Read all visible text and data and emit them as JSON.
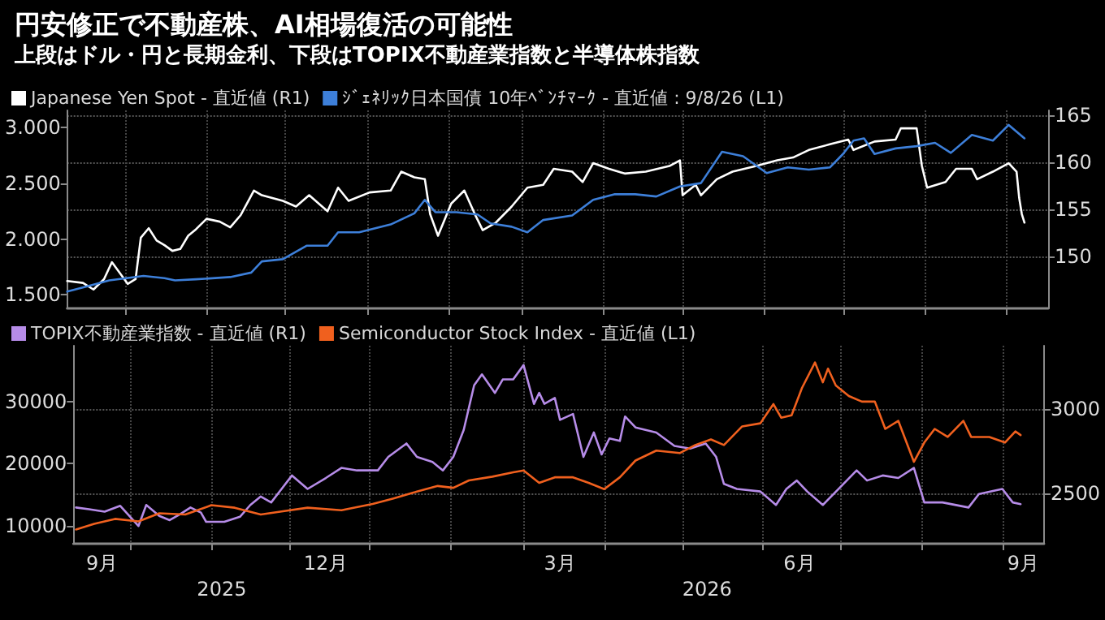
{
  "chart_data": [
    {
      "type": "line",
      "title": "円安修正で不動産株、AI相場復活の可能性",
      "subtitle": "上段はドル・円と長期金利、下段はTOPIX不動産業指数と半導体株指数",
      "xlim": [
        "2025-09-09",
        "2026-09-17"
      ],
      "xticks": [
        {
          "value": "2025-10-01",
          "label": null
        },
        {
          "value": "2025-11-01",
          "label": null
        },
        {
          "value": "2025-12-01",
          "label": null
        },
        {
          "value": "2026-01-01",
          "label": null
        },
        {
          "value": "2026-02-01",
          "label": null
        },
        {
          "value": "2026-03-01",
          "label": null
        },
        {
          "value": "2026-04-01",
          "label": null
        },
        {
          "value": "2026-05-01",
          "label": null
        },
        {
          "value": "2026-06-01",
          "label": null
        },
        {
          "value": "2026-07-01",
          "label": null
        },
        {
          "value": "2026-08-01",
          "label": null
        },
        {
          "value": "2026-09-01",
          "label": null
        }
      ],
      "ylim": [
        1.38,
        3.15
      ],
      "yticks": [
        {
          "value": 1.5,
          "label": "1.500"
        },
        {
          "value": 2,
          "label": "2.000"
        },
        {
          "value": 2.5,
          "label": "2.500"
        },
        {
          "value": 3,
          "label": "3.000"
        }
      ],
      "y2lim": [
        144.5,
        165.5
      ],
      "y2ticks": [
        150,
        155,
        160,
        165
      ],
      "tick_labels": "y",
      "grid": true,
      "legend": "top left",
      "marker": "none",
      "line_style": "solid",
      "series": [
        {
          "name": "Japanese Yen Spot - 直近値 (R1)",
          "color": "#ffffff",
          "axis": "y2",
          "x": [
            "2025-09-09",
            "2025-09-15",
            "2025-09-19",
            "2025-09-23",
            "2025-09-26",
            "2025-10-02",
            "2025-10-05",
            "2025-10-07",
            "2025-10-10",
            "2025-10-13",
            "2025-10-16",
            "2025-10-19",
            "2025-10-22",
            "2025-10-25",
            "2025-10-28",
            "2025-11-01",
            "2025-11-06",
            "2025-11-10",
            "2025-11-14",
            "2025-11-19",
            "2025-11-22",
            "2025-11-30",
            "2025-12-05",
            "2025-12-10",
            "2025-12-17",
            "2025-12-21",
            "2025-12-25",
            "2026-01-02",
            "2026-01-10",
            "2026-01-14",
            "2026-01-19",
            "2026-01-23",
            "2026-01-25",
            "2026-01-28",
            "2026-02-02",
            "2026-02-07",
            "2026-02-11",
            "2026-02-14",
            "2026-02-19",
            "2026-02-25",
            "2026-03-03",
            "2026-03-09",
            "2026-03-13",
            "2026-03-20",
            "2026-03-24",
            "2026-03-28",
            "2026-04-03",
            "2026-04-09",
            "2026-04-17",
            "2026-04-26",
            "2026-04-30",
            "2026-05-01",
            "2026-05-06",
            "2026-05-08",
            "2026-05-14",
            "2026-05-20",
            "2026-05-29",
            "2026-06-06",
            "2026-06-12",
            "2026-06-18",
            "2026-06-26",
            "2026-07-03",
            "2026-07-05",
            "2026-07-13",
            "2026-07-21",
            "2026-07-23",
            "2026-07-29",
            "2026-07-31",
            "2026-08-02",
            "2026-08-09",
            "2026-08-13",
            "2026-08-19",
            "2026-08-21",
            "2026-08-27",
            "2026-09-02",
            "2026-09-05",
            "2026-09-06",
            "2026-09-07",
            "2026-09-08"
          ],
          "values": [
            147.4,
            147.2,
            146.5,
            147.6,
            149.4,
            147.1,
            147.6,
            152.0,
            153.0,
            151.7,
            151.2,
            150.6,
            150.8,
            152.2,
            152.9,
            154.0,
            153.7,
            153.1,
            154.4,
            157.0,
            156.5,
            155.9,
            155.3,
            156.5,
            154.8,
            157.3,
            155.9,
            156.8,
            157.0,
            159.0,
            158.4,
            158.2,
            154.5,
            152.2,
            155.6,
            157.0,
            154.5,
            152.8,
            153.6,
            155.3,
            157.3,
            157.6,
            159.3,
            159.0,
            157.9,
            159.9,
            159.3,
            158.8,
            159.0,
            159.6,
            160.2,
            156.5,
            157.6,
            156.5,
            158.2,
            159.0,
            159.6,
            160.2,
            160.5,
            161.3,
            161.9,
            162.4,
            161.3,
            162.2,
            162.4,
            163.6,
            163.6,
            159.6,
            157.3,
            157.9,
            159.3,
            159.3,
            158.2,
            159.0,
            159.9,
            159.0,
            156.2,
            154.5,
            153.6
          ]
        },
        {
          "name": "ｼﾞｪﾈﾘｯｸ日本国債 10年ﾍﾞﾝﾁﾏｰｸ - 直近値 : 9/8/26 (L1)",
          "color": "#3d7fd9",
          "axis": "y",
          "x": [
            "2025-09-09",
            "2025-09-17",
            "2025-09-25",
            "2025-10-08",
            "2025-10-16",
            "2025-10-20",
            "2025-10-28",
            "2025-11-10",
            "2025-11-18",
            "2025-11-22",
            "2025-11-30",
            "2025-12-09",
            "2025-12-17",
            "2025-12-21",
            "2025-12-29",
            "2026-01-10",
            "2026-01-19",
            "2026-01-23",
            "2026-01-27",
            "2026-02-04",
            "2026-02-12",
            "2026-02-17",
            "2026-02-25",
            "2026-03-03",
            "2026-03-09",
            "2026-03-20",
            "2026-03-28",
            "2026-04-05",
            "2026-04-13",
            "2026-04-21",
            "2026-04-30",
            "2026-05-08",
            "2026-05-16",
            "2026-05-24",
            "2026-06-02",
            "2026-06-10",
            "2026-06-18",
            "2026-06-26",
            "2026-07-01",
            "2026-07-05",
            "2026-07-09",
            "2026-07-13",
            "2026-07-21",
            "2026-07-29",
            "2026-08-05",
            "2026-08-11",
            "2026-08-19",
            "2026-08-27",
            "2026-09-02",
            "2026-09-08"
          ],
          "values": [
            1.53,
            1.58,
            1.63,
            1.67,
            1.65,
            1.63,
            1.64,
            1.66,
            1.7,
            1.8,
            1.82,
            1.94,
            1.94,
            2.06,
            2.06,
            2.13,
            2.23,
            2.35,
            2.24,
            2.24,
            2.22,
            2.14,
            2.11,
            2.06,
            2.17,
            2.21,
            2.35,
            2.4,
            2.4,
            2.38,
            2.47,
            2.5,
            2.78,
            2.74,
            2.59,
            2.64,
            2.62,
            2.64,
            2.76,
            2.88,
            2.9,
            2.76,
            2.81,
            2.83,
            2.86,
            2.77,
            2.93,
            2.88,
            3.02,
            2.9
          ]
        }
      ]
    },
    {
      "type": "line",
      "xlim": [
        "2025-09-09",
        "2026-09-17"
      ],
      "xticks": [
        {
          "value": "2025-10-01",
          "label": null
        },
        {
          "value": "2025-11-01",
          "label": null
        },
        {
          "value": "2025-12-01",
          "label": null
        },
        {
          "value": "2026-01-01",
          "label": null
        },
        {
          "value": "2026-02-01",
          "label": null
        },
        {
          "value": "2026-03-01",
          "label": null
        },
        {
          "value": "2026-04-01",
          "label": null
        },
        {
          "value": "2026-05-01",
          "label": null
        },
        {
          "value": "2026-06-01",
          "label": null
        },
        {
          "value": "2026-07-01",
          "label": null
        },
        {
          "value": "2026-08-01",
          "label": null
        },
        {
          "value": "2026-09-01",
          "label": null
        },
        {
          "value": "2025-09-20",
          "label": "9月"
        },
        {
          "value": "2025-12-15",
          "label": "12月"
        },
        {
          "value": "2026-03-15",
          "label": "3月"
        },
        {
          "value": "2026-06-15",
          "label": "6月"
        },
        {
          "value": "2026-09-09",
          "label": "9月"
        }
      ],
      "ylim": [
        7100,
        39000
      ],
      "yticks": [
        10000,
        20000,
        30000
      ],
      "y2lim": [
        2200,
        3375
      ],
      "y2ticks": [
        2500,
        3000
      ],
      "grid": true,
      "legend": "top left",
      "marker": "none",
      "line_style": "solid",
      "annotations": [
        "2025",
        "2026"
      ],
      "series": [
        {
          "name": "TOPIX不動産業指数 - 直近値 (R1)",
          "color": "#b68ce8",
          "axis": "y2",
          "x": [
            "2025-09-10",
            "2025-09-15",
            "2025-09-21",
            "2025-09-27",
            "2025-10-04",
            "2025-10-07",
            "2025-10-12",
            "2025-10-16",
            "2025-10-20",
            "2025-10-24",
            "2025-10-28",
            "2025-10-30",
            "2025-11-06",
            "2025-11-12",
            "2025-11-16",
            "2025-11-20",
            "2025-11-24",
            "2025-11-28",
            "2025-12-02",
            "2025-12-08",
            "2025-12-15",
            "2025-12-21",
            "2025-12-27",
            "2026-01-04",
            "2026-01-08",
            "2026-01-15",
            "2026-01-19",
            "2026-01-25",
            "2026-01-29",
            "2026-02-02",
            "2026-02-06",
            "2026-02-10",
            "2026-02-13",
            "2026-02-18",
            "2026-02-21",
            "2026-02-25",
            "2026-03-01",
            "2026-03-05",
            "2026-03-07",
            "2026-03-09",
            "2026-03-13",
            "2026-03-15",
            "2026-03-20",
            "2026-03-24",
            "2026-03-28",
            "2026-03-31",
            "2026-04-03",
            "2026-04-07",
            "2026-04-09",
            "2026-04-13",
            "2026-04-21",
            "2026-04-28",
            "2026-05-04",
            "2026-05-10",
            "2026-05-14",
            "2026-05-17",
            "2026-05-22",
            "2026-05-31",
            "2026-06-06",
            "2026-06-10",
            "2026-06-14",
            "2026-06-18",
            "2026-06-24",
            "2026-07-01",
            "2026-07-07",
            "2026-07-11",
            "2026-07-17",
            "2026-07-23",
            "2026-07-29",
            "2026-08-02",
            "2026-08-09",
            "2026-08-19",
            "2026-08-23",
            "2026-09-01",
            "2026-09-05",
            "2026-09-08"
          ],
          "values": [
            2415,
            2405,
            2390,
            2425,
            2305,
            2430,
            2365,
            2340,
            2375,
            2415,
            2385,
            2330,
            2330,
            2360,
            2430,
            2480,
            2445,
            2525,
            2605,
            2525,
            2590,
            2650,
            2635,
            2635,
            2715,
            2795,
            2715,
            2685,
            2635,
            2715,
            2875,
            3140,
            3205,
            3095,
            3175,
            3175,
            3260,
            3030,
            3095,
            3030,
            3065,
            2935,
            2970,
            2715,
            2860,
            2730,
            2825,
            2810,
            2955,
            2890,
            2860,
            2780,
            2765,
            2795,
            2715,
            2555,
            2525,
            2510,
            2430,
            2525,
            2575,
            2510,
            2430,
            2540,
            2635,
            2575,
            2605,
            2590,
            2650,
            2445,
            2445,
            2415,
            2495,
            2525,
            2445,
            2435
          ]
        },
        {
          "name": "Semiconductor Stock Index - 直近値 (L1)",
          "color": "#f0601e",
          "axis": "y",
          "x": [
            "2025-09-10",
            "2025-09-17",
            "2025-09-25",
            "2025-10-04",
            "2025-10-12",
            "2025-10-22",
            "2025-11-01",
            "2025-11-10",
            "2025-11-20",
            "2025-11-28",
            "2025-12-08",
            "2025-12-21",
            "2026-01-02",
            "2026-01-10",
            "2026-01-19",
            "2026-01-27",
            "2026-02-02",
            "2026-02-08",
            "2026-02-17",
            "2026-02-25",
            "2026-03-01",
            "2026-03-07",
            "2026-03-13",
            "2026-03-20",
            "2026-03-26",
            "2026-04-01",
            "2026-04-07",
            "2026-04-13",
            "2026-04-21",
            "2026-04-30",
            "2026-05-06",
            "2026-05-12",
            "2026-05-17",
            "2026-05-24",
            "2026-05-31",
            "2026-06-05",
            "2026-06-08",
            "2026-06-12",
            "2026-06-16",
            "2026-06-21",
            "2026-06-24",
            "2026-06-26",
            "2026-06-29",
            "2026-07-04",
            "2026-07-09",
            "2026-07-14",
            "2026-07-18",
            "2026-07-23",
            "2026-07-29",
            "2026-08-02",
            "2026-08-06",
            "2026-08-11",
            "2026-08-17",
            "2026-08-20",
            "2026-08-27",
            "2026-09-02",
            "2026-09-06",
            "2026-09-08"
          ],
          "values": [
            9400,
            10300,
            11100,
            10700,
            12000,
            11800,
            13300,
            12900,
            11800,
            12300,
            12900,
            12500,
            13500,
            14400,
            15500,
            16400,
            16100,
            17300,
            17900,
            18600,
            18900,
            16900,
            17800,
            17800,
            16900,
            15900,
            17800,
            20500,
            22100,
            21700,
            23000,
            23900,
            23000,
            26000,
            26500,
            29600,
            27400,
            27800,
            32200,
            36300,
            33100,
            35300,
            32600,
            30900,
            30000,
            30000,
            25600,
            26900,
            20300,
            23400,
            25600,
            24300,
            26900,
            24300,
            24300,
            23400,
            25200,
            24600
          ]
        }
      ]
    }
  ]
}
